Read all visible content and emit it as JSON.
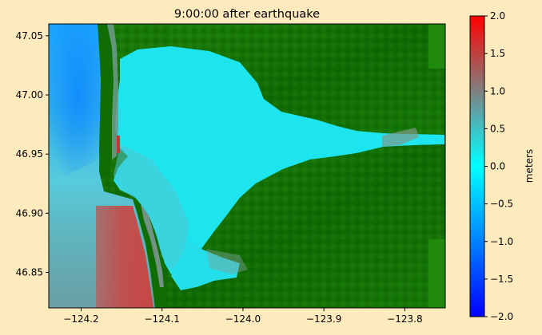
{
  "colors": {
    "figure_background": "#fdebbd",
    "land_dark": "#0b5c00",
    "land_mid": "#177a07",
    "water_zero": "#00e5ef",
    "water_deep_negative": "#1c96ff",
    "water_positive": "#c8413e",
    "axis": "#000000"
  },
  "chart_data": {
    "type": "heatmap",
    "title": "9:00:00 after earthquake",
    "xlabel": "",
    "ylabel": "",
    "xlim": [
      -124.24,
      -123.75
    ],
    "ylim": [
      46.82,
      47.06
    ],
    "x_ticks": [
      -124.2,
      -124.1,
      -124.0,
      -123.9,
      -123.8
    ],
    "y_ticks": [
      46.85,
      46.9,
      46.95,
      47.0,
      47.05
    ],
    "x_tick_labels": [
      "−124.2",
      "−124.1",
      "−124.0",
      "−123.9",
      "−123.8"
    ],
    "y_tick_labels": [
      "46.85",
      "46.90",
      "46.95",
      "47.00",
      "47.05"
    ],
    "grid": false,
    "colorbar": {
      "label": "meters",
      "range": [
        -2.0,
        2.0
      ],
      "ticks": [
        2.0,
        1.5,
        1.0,
        0.5,
        0.0,
        -0.5,
        -1.0,
        -1.5,
        -2.0
      ],
      "tick_labels": [
        "2.0",
        "1.5",
        "1.0",
        "0.5",
        "0.0",
        "−0.5",
        "−1.0",
        "−1.5",
        "−2.0"
      ],
      "colormap": [
        {
          "value": -2.0,
          "color": "#0000ff"
        },
        {
          "value": -1.0,
          "color": "#0082ff"
        },
        {
          "value": 0.0,
          "color": "#00ffff"
        },
        {
          "value": 0.5,
          "color": "#3fc2c4"
        },
        {
          "value": 1.0,
          "color": "#808080"
        },
        {
          "value": 1.5,
          "color": "#c04040"
        },
        {
          "value": 2.0,
          "color": "#ff0000"
        }
      ]
    },
    "regions": [
      {
        "name": "open ocean north",
        "surface_height_m": -0.6
      },
      {
        "name": "open ocean mid",
        "surface_height_m": 0.25
      },
      {
        "name": "ocean offshore south",
        "surface_height_m": 0.7
      },
      {
        "name": "surge along south coast",
        "surface_height_m": 1.5
      },
      {
        "name": "bay interior",
        "surface_height_m": 0.1
      },
      {
        "name": "land",
        "surface_height_m": null
      }
    ]
  }
}
